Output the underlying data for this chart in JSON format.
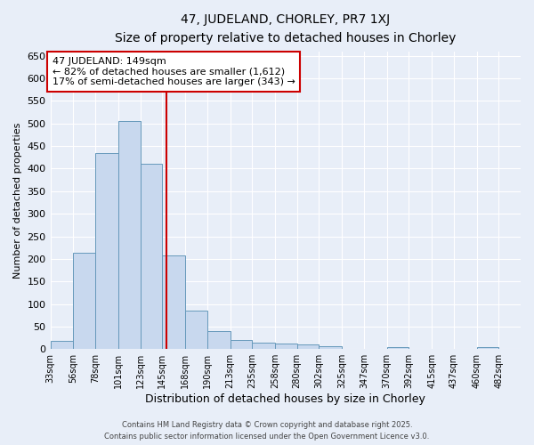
{
  "title_line1": "47, JUDELAND, CHORLEY, PR7 1XJ",
  "title_line2": "Size of property relative to detached houses in Chorley",
  "xlabel": "Distribution of detached houses by size in Chorley",
  "ylabel": "Number of detached properties",
  "bar_left_edges": [
    33,
    56,
    78,
    101,
    123,
    145,
    168,
    190,
    213,
    235,
    258,
    280,
    302,
    325,
    347,
    370,
    392,
    415,
    437,
    460
  ],
  "bar_widths": [
    23,
    22,
    23,
    22,
    22,
    23,
    22,
    23,
    22,
    23,
    22,
    22,
    23,
    22,
    23,
    22,
    23,
    22,
    23,
    22
  ],
  "bar_heights": [
    18,
    213,
    435,
    505,
    410,
    208,
    85,
    40,
    20,
    15,
    12,
    10,
    6,
    0,
    0,
    4,
    0,
    0,
    0,
    5
  ],
  "tick_labels": [
    "33sqm",
    "56sqm",
    "78sqm",
    "101sqm",
    "123sqm",
    "145sqm",
    "168sqm",
    "190sqm",
    "213sqm",
    "235sqm",
    "258sqm",
    "280sqm",
    "302sqm",
    "325sqm",
    "347sqm",
    "370sqm",
    "392sqm",
    "415sqm",
    "437sqm",
    "460sqm",
    "482sqm"
  ],
  "bar_color": "#c8d8ee",
  "bar_edge_color": "#6699bb",
  "vline_x": 149,
  "vline_color": "#cc0000",
  "annotation_title": "47 JUDELAND: 149sqm",
  "annotation_line1": "← 82% of detached houses are smaller (1,612)",
  "annotation_line2": "17% of semi-detached houses are larger (343) →",
  "annotation_box_facecolor": "#ffffff",
  "annotation_box_edgecolor": "#cc0000",
  "ylim": [
    0,
    660
  ],
  "yticks": [
    0,
    50,
    100,
    150,
    200,
    250,
    300,
    350,
    400,
    450,
    500,
    550,
    600,
    650
  ],
  "xlim_left": 33,
  "xlim_right": 504,
  "bg_color": "#e8eef8",
  "grid_color": "#ffffff",
  "footer_line1": "Contains HM Land Registry data © Crown copyright and database right 2025.",
  "footer_line2": "Contains public sector information licensed under the Open Government Licence v3.0."
}
